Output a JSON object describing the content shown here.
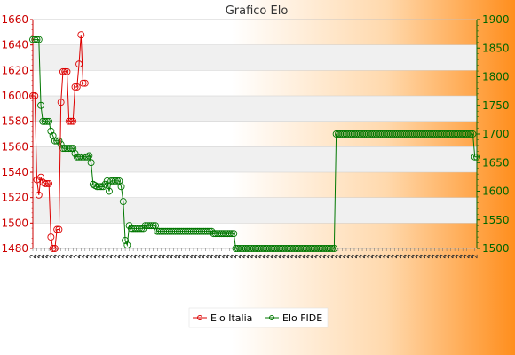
{
  "colors": {
    "italia": "#dd0000",
    "fide": "#007700",
    "band": "#f0f0f0",
    "grid": "#cccccc"
  },
  "chart_data": {
    "type": "line",
    "title": "Grafico Elo",
    "grid": true,
    "legend_placement": "bottom",
    "left_axis": {
      "ylim": [
        1480,
        1660
      ],
      "ticks": [
        1480,
        1500,
        1520,
        1540,
        1560,
        1580,
        1600,
        1620,
        1640,
        1660
      ],
      "tick_labels": [
        "1480",
        "1500",
        "1520",
        "1540",
        "1560",
        "1580",
        "1600",
        "1620",
        "1640",
        "1660"
      ]
    },
    "right_axis": {
      "ylim": [
        1500,
        1900
      ],
      "ticks": [
        1500,
        1550,
        1600,
        1650,
        1700,
        1750,
        1800,
        1850,
        1900
      ],
      "tick_labels": [
        "1500",
        "1550",
        "1600",
        "1650",
        "1700",
        "1750",
        "1800",
        "1850",
        "1900"
      ]
    },
    "x_tick_label_sample": "2",
    "series": [
      {
        "name": "Elo Italia",
        "axis": "left",
        "color": "#dd0000",
        "values": [
          1600,
          1600,
          1534,
          1522,
          1536,
          1532,
          1531,
          1531,
          1531,
          1489,
          1480,
          1480,
          1495,
          1495,
          1595,
          1619,
          1619,
          1619,
          1580,
          1580,
          1580,
          1607,
          1607,
          1625,
          1648,
          1610,
          1610
        ]
      },
      {
        "name": "Elo FIDE",
        "axis": "right",
        "color": "#007700",
        "values": [
          1865,
          1865,
          1865,
          1865,
          1750,
          1722,
          1722,
          1722,
          1722,
          1705,
          1697,
          1688,
          1688,
          1688,
          1682,
          1675,
          1675,
          1675,
          1675,
          1675,
          1675,
          1666,
          1660,
          1660,
          1660,
          1660,
          1660,
          1660,
          1662,
          1650,
          1612,
          1610,
          1608,
          1608,
          1608,
          1608,
          1612,
          1618,
          1600,
          1618,
          1618,
          1618,
          1618,
          1618,
          1608,
          1582,
          1514,
          1506,
          1540,
          1535,
          1535,
          1535,
          1535,
          1535,
          1535,
          1535,
          1540,
          1540,
          1540,
          1540,
          1540,
          1540,
          1530,
          1530,
          1530,
          1530,
          1530,
          1530,
          1530,
          1530,
          1530,
          1530,
          1530,
          1530,
          1530,
          1530,
          1530,
          1530,
          1530,
          1530,
          1530,
          1530,
          1530,
          1530,
          1530,
          1530,
          1530,
          1530,
          1530,
          1530,
          1526,
          1526,
          1526,
          1526,
          1526,
          1526,
          1526,
          1526,
          1526,
          1526,
          1526,
          1500,
          1500,
          1500,
          1500,
          1500,
          1500,
          1500,
          1500,
          1500,
          1500,
          1500,
          1500,
          1500,
          1500,
          1500,
          1500,
          1500,
          1500,
          1500,
          1500,
          1500,
          1500,
          1500,
          1500,
          1500,
          1500,
          1500,
          1500,
          1500,
          1500,
          1500,
          1500,
          1500,
          1500,
          1500,
          1500,
          1500,
          1500,
          1500,
          1500,
          1500,
          1500,
          1500,
          1500,
          1500,
          1500,
          1500,
          1500,
          1500,
          1500,
          1700,
          1700,
          1700,
          1700,
          1700,
          1700,
          1700,
          1700,
          1700,
          1700,
          1700,
          1700,
          1700,
          1700,
          1700,
          1700,
          1700,
          1700,
          1700,
          1700,
          1700,
          1700,
          1700,
          1700,
          1700,
          1700,
          1700,
          1700,
          1700,
          1700,
          1700,
          1700,
          1700,
          1700,
          1700,
          1700,
          1700,
          1700,
          1700,
          1700,
          1700,
          1700,
          1700,
          1700,
          1700,
          1700,
          1700,
          1700,
          1700,
          1700,
          1700,
          1700,
          1700,
          1700,
          1700,
          1700,
          1700,
          1700,
          1700,
          1700,
          1700,
          1700,
          1700,
          1700,
          1700,
          1700,
          1700,
          1700,
          1700,
          1660,
          1660
        ]
      }
    ]
  }
}
